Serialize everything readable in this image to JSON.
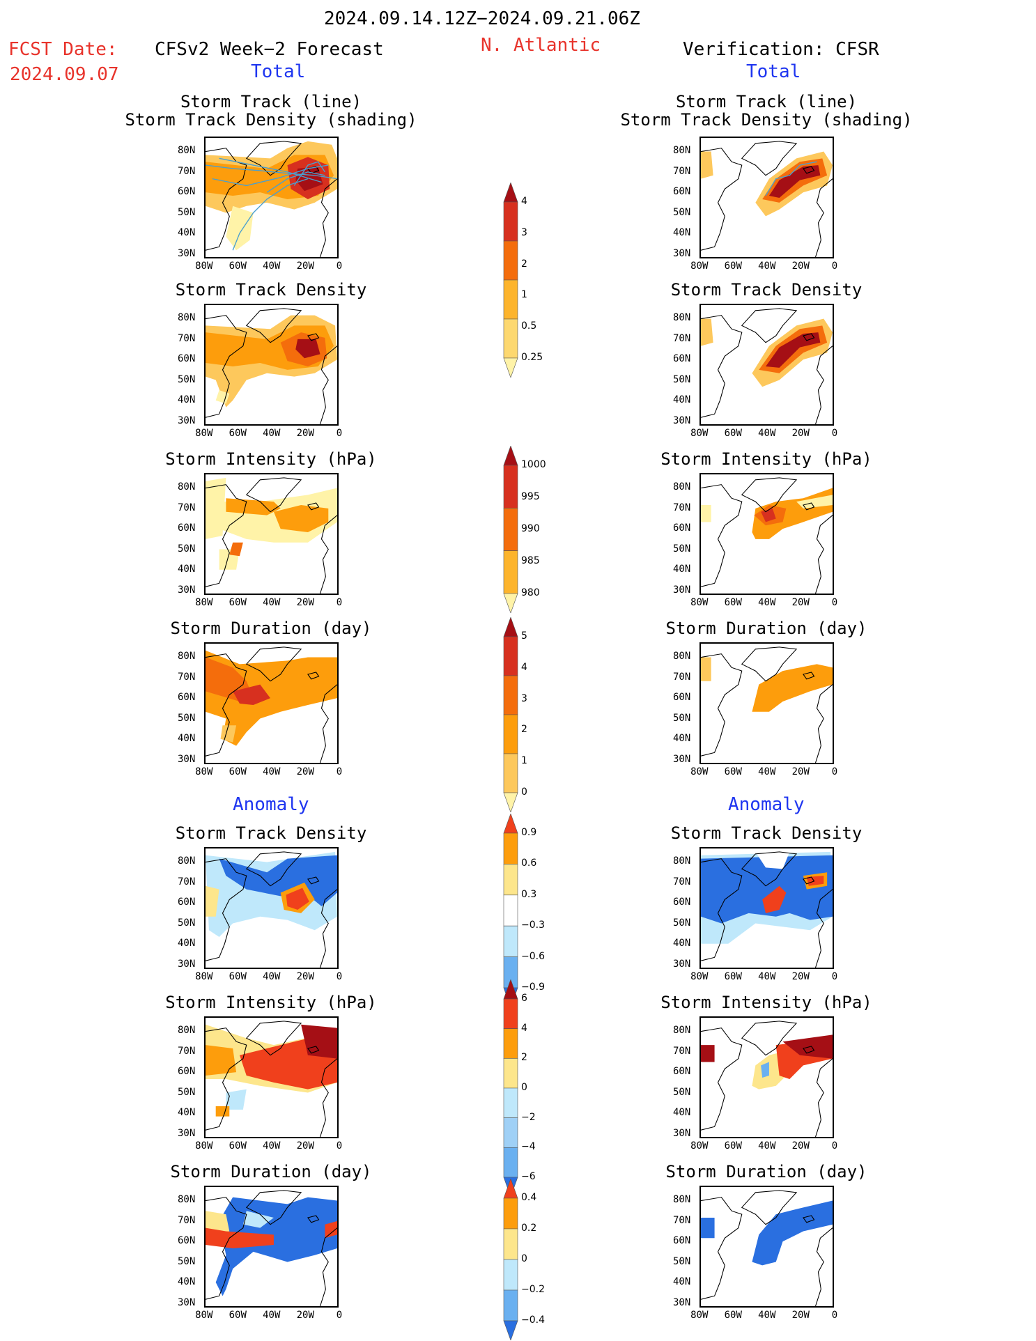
{
  "header": {
    "date_range": "2024.09.14.12Z−2024.09.21.06Z",
    "fcst_label": "FCST Date:",
    "fcst_date": "2024.09.07",
    "left_title": "CFSv2 Week−2 Forecast",
    "region": "N. Atlantic",
    "right_title": "Verification: CFSR"
  },
  "sections": {
    "total": "Total",
    "anomaly": "Anomaly"
  },
  "panel_titles": {
    "track1": "Storm Track (line)",
    "track2": "Storm Track Density (shading)",
    "density": "Storm Track Density",
    "intensity": "Storm Intensity (hPa)",
    "duration": "Storm Duration (day)"
  },
  "axes": {
    "lat_ticks": [
      "80N",
      "70N",
      "60N",
      "50N",
      "40N",
      "30N"
    ],
    "lon_ticks": [
      "80W",
      "60W",
      "40W",
      "20W",
      "0"
    ]
  },
  "colorbars": {
    "density_total": [
      "4",
      "3",
      "2",
      "1",
      "0.5",
      "0.25"
    ],
    "intensity_total": [
      "1000",
      "995",
      "990",
      "985",
      "980"
    ],
    "duration_total": [
      "5",
      "4",
      "3",
      "2",
      "1",
      "0"
    ],
    "density_anom": [
      "0.9",
      "0.6",
      "0.3",
      "−0.3",
      "−0.6",
      "−0.9"
    ],
    "intensity_anom": [
      "6",
      "4",
      "2",
      "0",
      "−2",
      "−4",
      "−6"
    ],
    "duration_anom": [
      "0.4",
      "0.2",
      "0",
      "−0.2",
      "−0.4"
    ]
  },
  "colors": {
    "title_red": "#e8332b",
    "section_blue": "#1f36f0",
    "dark_red": "#a50f15",
    "red": "#d7301f",
    "orange_red": "#f46d0c",
    "orange": "#fd9d0c",
    "light_orange": "#fdc85c",
    "pale_yellow": "#fff3a8",
    "light_blue": "#bfe8fb",
    "mid_blue": "#6ab0f0",
    "blue": "#2a6fe0"
  }
}
